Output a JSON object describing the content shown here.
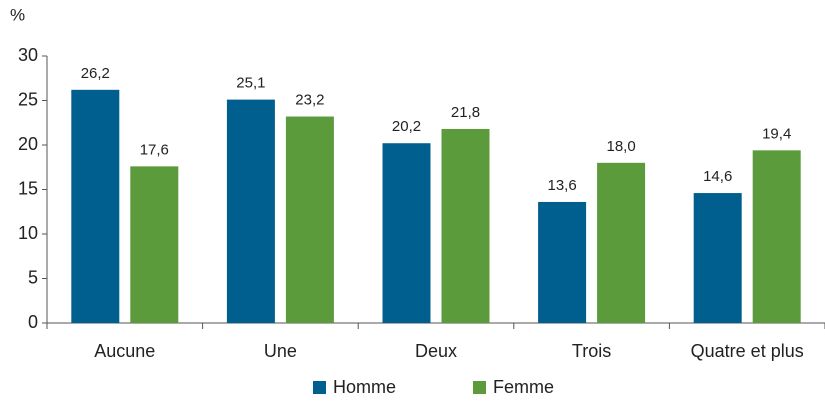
{
  "chart_data": {
    "type": "bar",
    "y_label": "%",
    "categories": [
      "Aucune",
      "Une",
      "Deux",
      "Trois",
      "Quatre et plus"
    ],
    "series": [
      {
        "name": "Homme",
        "color": "#005f8e",
        "values": [
          26.2,
          25.1,
          20.2,
          13.6,
          14.6
        ],
        "value_labels": [
          "26,2",
          "25,1",
          "20,2",
          "13,6",
          "14,6"
        ]
      },
      {
        "name": "Femme",
        "color": "#5b9b3b",
        "values": [
          17.6,
          23.2,
          21.8,
          18.0,
          19.4
        ],
        "value_labels": [
          "17,6",
          "23,2",
          "21,8",
          "18,0",
          "19,4"
        ]
      }
    ],
    "ylim": [
      0,
      30
    ],
    "yticks": [
      0,
      5,
      10,
      15,
      20,
      25,
      30
    ],
    "legend": "bottom"
  }
}
